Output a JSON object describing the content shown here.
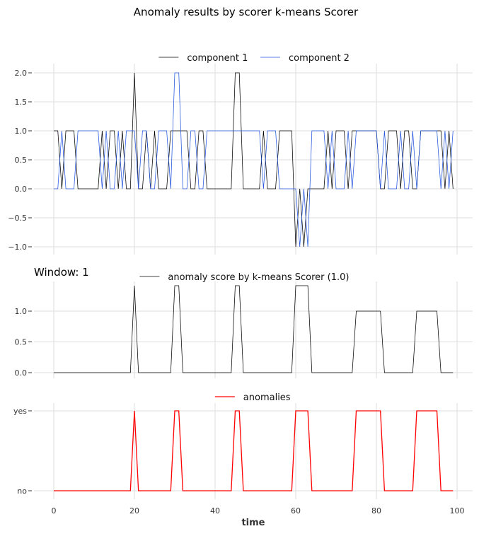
{
  "figure": {
    "title": "Anomaly results by scorer k-means Scorer",
    "window_label": "Window: 1",
    "xlabel": "time"
  },
  "chart_data": [
    {
      "type": "line",
      "name": "input-series",
      "title": "",
      "xlabel": "",
      "ylabel": "",
      "ylim": [
        -1.15,
        2.15
      ],
      "xlim": [
        -5,
        104
      ],
      "grid": true,
      "legend_position": "top-center",
      "yticks": [
        2.0,
        1.5,
        1.0,
        0.5,
        0.0,
        -0.5,
        -1.0
      ],
      "ytick_labels": [
        "2.0",
        "1.5",
        "1.0",
        "0.5",
        "0.0",
        "−0.5",
        "−1.0"
      ],
      "xticks": [
        0,
        20,
        40,
        60,
        80,
        100
      ],
      "series": [
        {
          "name": "component 1",
          "color": "#000000",
          "values": [
            1,
            1,
            0,
            1,
            1,
            1,
            0,
            0,
            0,
            0,
            0,
            0,
            1,
            0,
            1,
            1,
            0,
            1,
            0,
            0,
            2,
            0,
            0,
            1,
            0,
            1,
            0,
            0,
            0,
            1,
            1,
            1,
            1,
            1,
            0,
            0,
            1,
            1,
            0,
            0,
            0,
            0,
            0,
            0,
            0,
            2,
            2,
            0,
            0,
            0,
            0,
            0,
            1,
            0,
            0,
            0,
            1,
            1,
            1,
            1,
            -1,
            0,
            -1,
            0,
            0,
            0,
            0,
            0,
            1,
            0,
            1,
            1,
            1,
            0,
            1,
            1,
            1,
            1,
            1,
            1,
            1,
            0,
            0,
            1,
            1,
            1,
            0,
            1,
            1,
            0,
            0,
            1,
            1,
            1,
            1,
            1,
            1,
            0,
            1,
            0
          ]
        },
        {
          "name": "component 2",
          "color": "#2255dd",
          "values": [
            0,
            0,
            1,
            0,
            0,
            0,
            1,
            1,
            1,
            1,
            1,
            1,
            0,
            1,
            0,
            0,
            1,
            0,
            1,
            1,
            1,
            0,
            1,
            1,
            0,
            0,
            1,
            1,
            1,
            0,
            2,
            2,
            0,
            0,
            1,
            1,
            0,
            0,
            1,
            1,
            1,
            1,
            1,
            1,
            1,
            1,
            1,
            1,
            1,
            1,
            1,
            1,
            0,
            1,
            1,
            1,
            0,
            0,
            0,
            0,
            0,
            -1,
            0,
            -1,
            1,
            1,
            1,
            1,
            0,
            1,
            0,
            0,
            0,
            1,
            0,
            1,
            1,
            1,
            1,
            1,
            1,
            0,
            1,
            0,
            0,
            0,
            1,
            0,
            0,
            1,
            0,
            1,
            1,
            1,
            1,
            1,
            0,
            1,
            0,
            1
          ]
        }
      ]
    },
    {
      "type": "line",
      "name": "anomaly-score",
      "title": "Window: 1",
      "xlabel": "",
      "ylabel": "",
      "ylim": [
        -0.05,
        1.45
      ],
      "xlim": [
        -5,
        104
      ],
      "grid": true,
      "legend_position": "top-center",
      "yticks": [
        1.0,
        0.5,
        0.0
      ],
      "ytick_labels": [
        "1.0",
        "0.5",
        "0.0"
      ],
      "xticks": [
        0,
        20,
        40,
        60,
        80,
        100
      ],
      "series": [
        {
          "name": "anomaly score by k-means Scorer (1.0)",
          "color": "#000000",
          "values": [
            0,
            0,
            0,
            0,
            0,
            0,
            0,
            0,
            0,
            0,
            0,
            0,
            0,
            0,
            0,
            0,
            0,
            0,
            0,
            0,
            1.414,
            0,
            0,
            0,
            0,
            0,
            0,
            0,
            0,
            0,
            1.414,
            1.414,
            0,
            0,
            0,
            0,
            0,
            0,
            0,
            0,
            0,
            0,
            0,
            0,
            0,
            1.414,
            1.414,
            0,
            0,
            0,
            0,
            0,
            0,
            0,
            0,
            0,
            0,
            0,
            0,
            0,
            1.414,
            1.414,
            1.414,
            1.414,
            0,
            0,
            0,
            0,
            0,
            0,
            0,
            0,
            0,
            0,
            0,
            1,
            1,
            1,
            1,
            1,
            1,
            1,
            0,
            0,
            0,
            0,
            0,
            0,
            0,
            0,
            1,
            1,
            1,
            1,
            1,
            1,
            0,
            0,
            0,
            0
          ]
        }
      ]
    },
    {
      "type": "line",
      "name": "anomalies",
      "title": "",
      "xlabel": "time",
      "ylabel": "",
      "ylim": [
        -0.1,
        1.1
      ],
      "xlim": [
        -5,
        104
      ],
      "grid": true,
      "legend_position": "top-center",
      "yticks": [
        1,
        0
      ],
      "ytick_labels": [
        "yes",
        "no"
      ],
      "xticks": [
        0,
        20,
        40,
        60,
        80,
        100
      ],
      "xtick_labels": [
        "0",
        "20",
        "40",
        "60",
        "80",
        "100"
      ],
      "series": [
        {
          "name": "anomalies",
          "color": "#ff0000",
          "values": [
            0,
            0,
            0,
            0,
            0,
            0,
            0,
            0,
            0,
            0,
            0,
            0,
            0,
            0,
            0,
            0,
            0,
            0,
            0,
            0,
            1,
            0,
            0,
            0,
            0,
            0,
            0,
            0,
            0,
            0,
            1,
            1,
            0,
            0,
            0,
            0,
            0,
            0,
            0,
            0,
            0,
            0,
            0,
            0,
            0,
            1,
            1,
            0,
            0,
            0,
            0,
            0,
            0,
            0,
            0,
            0,
            0,
            0,
            0,
            0,
            1,
            1,
            1,
            1,
            0,
            0,
            0,
            0,
            0,
            0,
            0,
            0,
            0,
            0,
            0,
            1,
            1,
            1,
            1,
            1,
            1,
            1,
            0,
            0,
            0,
            0,
            0,
            0,
            0,
            0,
            1,
            1,
            1,
            1,
            1,
            1,
            0,
            0,
            0,
            0
          ]
        }
      ]
    }
  ]
}
